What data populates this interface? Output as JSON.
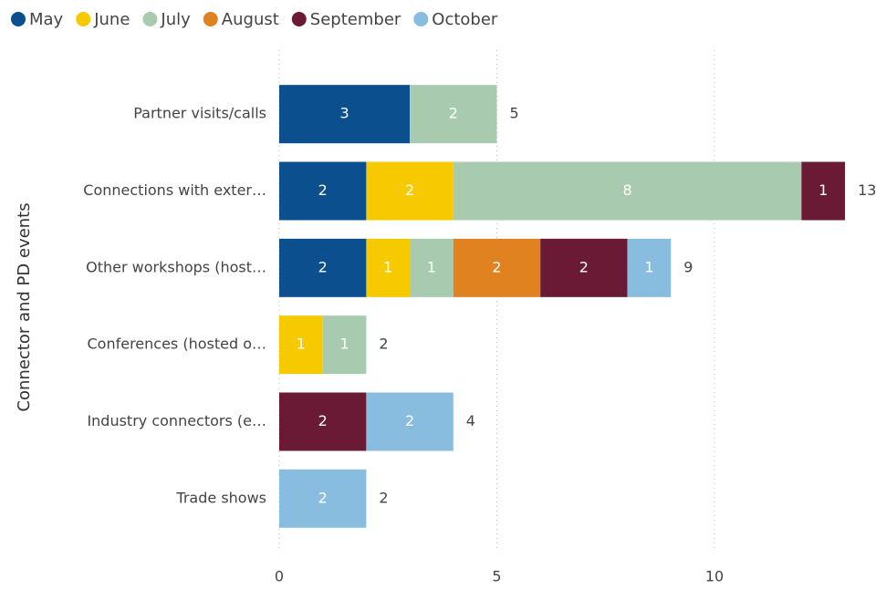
{
  "chart_data": {
    "type": "stacked_barh",
    "y_label": "Connector and PD events",
    "categories": [
      "Partner visits/calls",
      "Connections with exter…",
      "Other workshops (host…",
      "Conferences (hosted o…",
      "Industry connectors (e…",
      "Trade shows"
    ],
    "series": [
      {
        "name": "May",
        "color": "#0b4f8f",
        "values": [
          3,
          2,
          2,
          null,
          null,
          null
        ]
      },
      {
        "name": "June",
        "color": "#f6c900",
        "values": [
          null,
          2,
          1,
          1,
          null,
          null
        ]
      },
      {
        "name": "July",
        "color": "#a8cbb0",
        "values": [
          2,
          8,
          1,
          1,
          null,
          null
        ]
      },
      {
        "name": "August",
        "color": "#e08220",
        "values": [
          null,
          null,
          2,
          null,
          null,
          null
        ]
      },
      {
        "name": "September",
        "color": "#6b1a35",
        "values": [
          null,
          1,
          2,
          null,
          2,
          null
        ]
      },
      {
        "name": "October",
        "color": "#88bde0",
        "values": [
          null,
          null,
          1,
          null,
          2,
          2
        ]
      }
    ],
    "totals": [
      5,
      13,
      9,
      2,
      4,
      2
    ],
    "xlim": [
      0,
      13.5
    ],
    "xticks": [
      0,
      5,
      10
    ],
    "grid": true,
    "legend": "top-left"
  }
}
